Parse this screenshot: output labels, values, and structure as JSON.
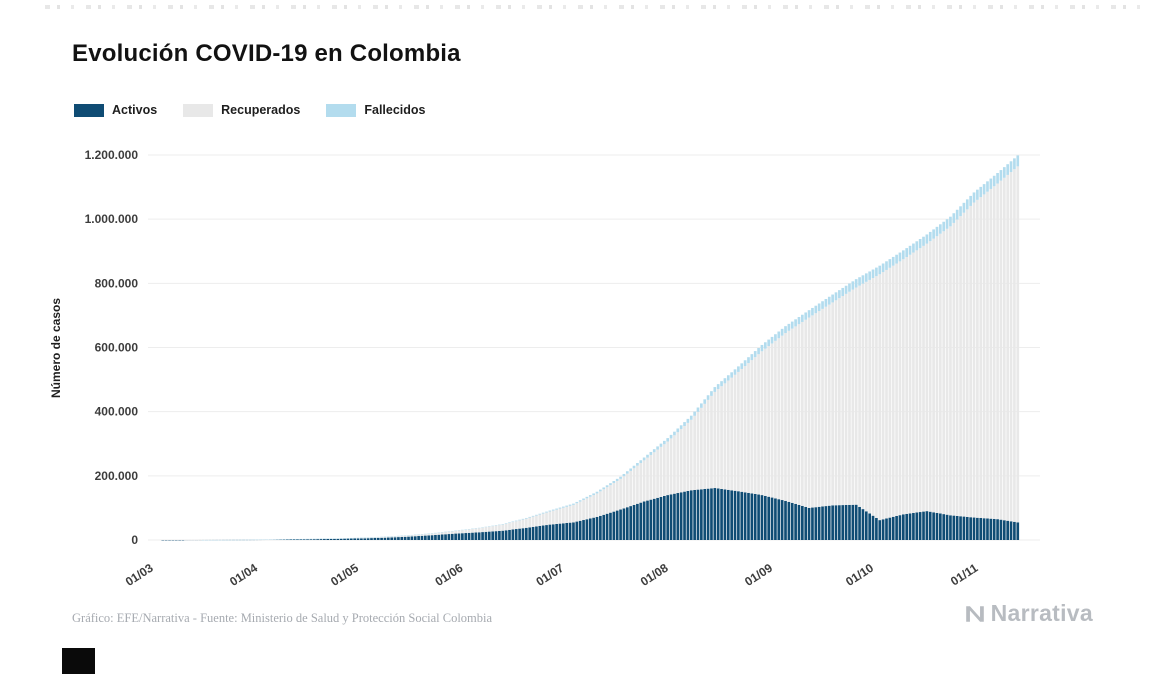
{
  "page": {
    "title": "Evolución COVID-19 en Colombia",
    "footer_source": "Gráfico: EFE/Narrativa - Fuente: Ministerio de Salud y Protección Social Colombia",
    "brand": "Narrativa"
  },
  "colors": {
    "activos": "#0f4c74",
    "recuperados": "#e8e8e8",
    "fallecidos": "#b3dcee",
    "grid": "#ededed",
    "axis_text": "#3d3d3d",
    "title": "#121212",
    "footer": "#a6aab0",
    "brand": "#b8bcc1"
  },
  "legend": [
    {
      "label": "Activos",
      "color": "#0f4c74"
    },
    {
      "label": "Recuperados",
      "color": "#e8e8e8"
    },
    {
      "label": "Fallecidos",
      "color": "#b3dcee"
    }
  ],
  "chart_data": {
    "type": "area",
    "stacked": true,
    "title": "Evolución COVID-19 en Colombia",
    "xlabel": "",
    "ylabel": "Número de casos",
    "ylim": [
      0,
      1200000
    ],
    "grid": true,
    "legend_position": "top-left",
    "yticks": [
      0,
      200000,
      400000,
      600000,
      800000,
      1000000,
      1200000
    ],
    "ytick_labels": [
      "0",
      "200.000",
      "400.000",
      "600.000",
      "800.000",
      "1.000.000",
      "1.200.000"
    ],
    "xtick_labels": [
      "01/03",
      "01/04",
      "01/05",
      "01/06",
      "01/07",
      "01/08",
      "01/09",
      "01/10",
      "01/11"
    ],
    "xtick_days": [
      0,
      31,
      61,
      92,
      122,
      153,
      184,
      214,
      245
    ],
    "x_domain_days": [
      0,
      265
    ],
    "dates": [
      "2020-03-01",
      "2020-03-08",
      "2020-03-15",
      "2020-03-22",
      "2020-03-29",
      "2020-04-05",
      "2020-04-12",
      "2020-04-19",
      "2020-04-26",
      "2020-05-03",
      "2020-05-10",
      "2020-05-17",
      "2020-05-24",
      "2020-05-31",
      "2020-06-07",
      "2020-06-14",
      "2020-06-21",
      "2020-06-28",
      "2020-07-05",
      "2020-07-12",
      "2020-07-19",
      "2020-07-26",
      "2020-08-02",
      "2020-08-09",
      "2020-08-16",
      "2020-08-23",
      "2020-08-30",
      "2020-09-06",
      "2020-09-13",
      "2020-09-20",
      "2020-09-27",
      "2020-10-04",
      "2020-10-11",
      "2020-10-18",
      "2020-10-25",
      "2020-11-01",
      "2020-11-08",
      "2020-11-14"
    ],
    "days": [
      0,
      7,
      14,
      21,
      28,
      35,
      42,
      49,
      56,
      63,
      70,
      77,
      84,
      91,
      98,
      105,
      112,
      119,
      126,
      133,
      140,
      147,
      154,
      161,
      168,
      175,
      182,
      189,
      196,
      203,
      210,
      217,
      224,
      231,
      238,
      245,
      252,
      258
    ],
    "series": [
      {
        "name": "Activos",
        "color": "#0f4c74",
        "values": [
          0,
          1,
          33,
          222,
          650,
          1300,
          2300,
          3000,
          3800,
          5000,
          7200,
          10500,
          15000,
          20000,
          24000,
          29000,
          38000,
          48000,
          55000,
          72000,
          95000,
          120000,
          140000,
          155000,
          162000,
          152000,
          140000,
          122000,
          100000,
          108000,
          110000,
          62000,
          80000,
          90000,
          77000,
          70000,
          65000,
          55000
        ]
      },
      {
        "name": "Recuperados",
        "color": "#e8e8e8",
        "values": [
          0,
          0,
          1,
          7,
          42,
          150,
          396,
          613,
          1098,
          1961,
          2850,
          3877,
          5448,
          8444,
          12822,
          18954,
          28415,
          40663,
          54447,
          73138,
          95542,
          128324,
          167001,
          219639,
          299563,
          371823,
          448275,
          523109,
          593395,
          632506,
          677058,
          766340,
          795087,
          833755,
          900711,
          981806,
          1046096,
          1109684
        ]
      },
      {
        "name": "Fallecidos",
        "color": "#b3dcee",
        "values": [
          0,
          0,
          0,
          2,
          10,
          35,
          80,
          179,
          244,
          324,
          445,
          562,
          727,
          939,
          1205,
          1625,
          2237,
          3106,
          3942,
          5307,
          6736,
          8777,
          10650,
          12842,
          15097,
          17316,
          19663,
          21412,
          22924,
          24570,
          25998,
          26712,
          27660,
          28616,
          30000,
          31515,
          32791,
          34031
        ]
      }
    ]
  }
}
